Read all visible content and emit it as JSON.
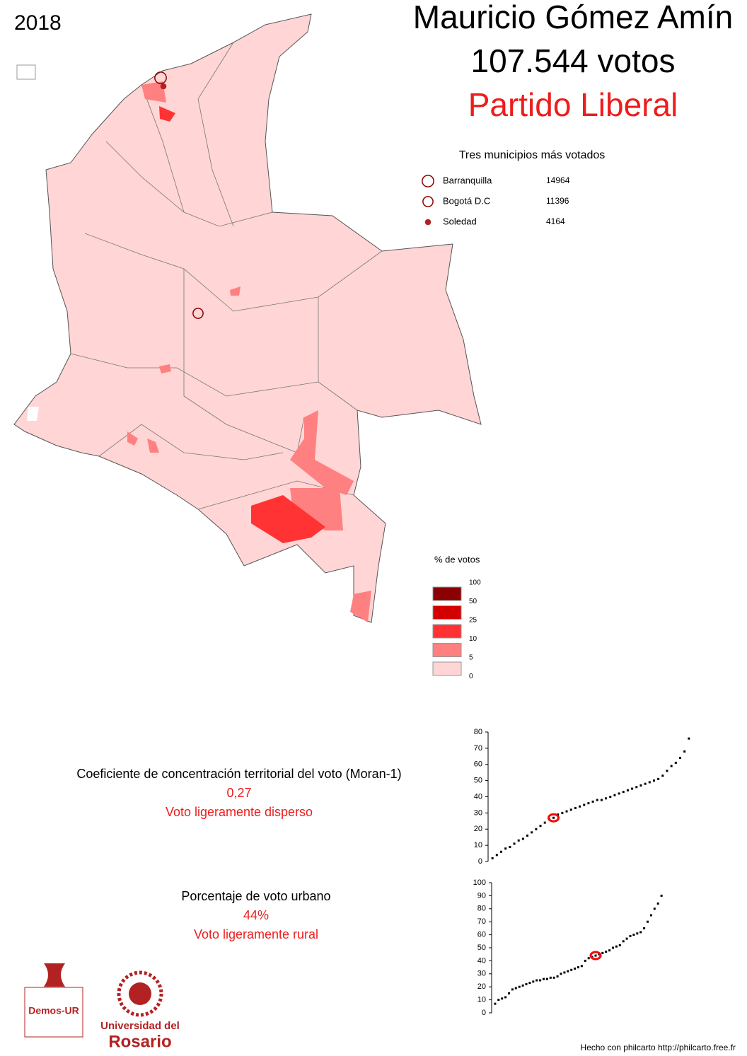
{
  "year": "2018",
  "header": {
    "name": "Mauricio Gómez Amín",
    "votes": "107.544 votos",
    "party": "Partido Liberal"
  },
  "top_municipalities": {
    "title": "Tres municipios más votados",
    "items": [
      {
        "name": "Barranquilla",
        "value": 14964,
        "filled": false
      },
      {
        "name": "Bogotá D.C",
        "value": 11396,
        "filled": false
      },
      {
        "name": "Soledad",
        "value": 4164,
        "filled": true
      }
    ]
  },
  "legend": {
    "title": "% de votos",
    "ticks": [
      100,
      50,
      25,
      10,
      5,
      0
    ],
    "colors": [
      "#8b0000",
      "#d40000",
      "#ff3333",
      "#ff8080",
      "#ffd5d5"
    ]
  },
  "moran": {
    "label": "Coeficiente de concentración territorial del voto (Moran-1)",
    "value": "0,27",
    "description": "Voto ligeramente disperso"
  },
  "urban": {
    "label": "Porcentaje de voto urbano",
    "value": "44%",
    "description": "Voto ligeramente rural"
  },
  "chart_data": [
    {
      "type": "scatter",
      "ylim": [
        0,
        80
      ],
      "yticks": [
        0,
        10,
        20,
        30,
        40,
        50,
        60,
        70,
        80
      ],
      "xlim": [
        0,
        47
      ],
      "series": [
        {
          "color": "#000000",
          "x": [
            1,
            2,
            3,
            4,
            5,
            6,
            7,
            8,
            9,
            10,
            11,
            12,
            13,
            14,
            15,
            16,
            17,
            18,
            19,
            20,
            21,
            22,
            23,
            24,
            25,
            26,
            27,
            28,
            29,
            30,
            31,
            32,
            33,
            34,
            35,
            36,
            37,
            38,
            39,
            40,
            41,
            42,
            43,
            44,
            45,
            46
          ],
          "values": [
            2,
            4,
            6,
            8,
            9,
            11,
            13,
            14,
            16,
            18,
            20,
            22,
            24,
            26,
            27,
            29,
            30,
            31,
            32,
            33,
            34,
            35,
            36,
            37,
            38,
            38,
            39,
            40,
            41,
            42,
            43,
            44,
            45,
            46,
            47,
            48,
            49,
            50,
            51,
            53,
            56,
            59,
            61,
            64,
            68,
            76
          ]
        },
        {
          "color": "#ff0000",
          "x": [
            15
          ],
          "values": [
            27
          ]
        }
      ]
    },
    {
      "type": "scatter",
      "ylim": [
        0,
        100
      ],
      "yticks": [
        0,
        10,
        20,
        30,
        40,
        50,
        60,
        70,
        80,
        90,
        100
      ],
      "xlim": [
        0,
        50
      ],
      "series": [
        {
          "color": "#000000",
          "x": [
            1,
            2,
            3,
            4,
            5,
            6,
            7,
            8,
            9,
            10,
            11,
            12,
            13,
            14,
            15,
            16,
            17,
            18,
            19,
            20,
            21,
            22,
            23,
            24,
            25,
            26,
            27,
            28,
            29,
            30,
            31,
            32,
            33,
            34,
            35,
            36,
            37,
            38,
            39,
            40,
            41,
            42,
            43,
            44,
            45,
            46,
            47,
            48,
            49
          ],
          "values": [
            7,
            10,
            11,
            12,
            15,
            18,
            19,
            20,
            21,
            22,
            23,
            24,
            25,
            25,
            26,
            26,
            27,
            27,
            28,
            30,
            31,
            32,
            33,
            34,
            35,
            36,
            40,
            42,
            43,
            44,
            45,
            46,
            47,
            48,
            50,
            51,
            52,
            55,
            57,
            59,
            60,
            61,
            62,
            65,
            70,
            75,
            80,
            84,
            90
          ]
        },
        {
          "color": "#ff0000",
          "x": [
            30
          ],
          "values": [
            44
          ]
        }
      ]
    }
  ],
  "logos": {
    "demos": "Demos-UR",
    "university_line1": "Universidad del",
    "university_line2": "Rosario"
  },
  "footer": "Hecho con philcarto http://philcarto.free.fr"
}
